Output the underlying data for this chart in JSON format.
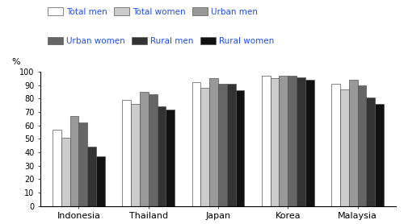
{
  "countries": [
    "Indonesia",
    "Thailand",
    "Japan",
    "Korea",
    "Malaysia"
  ],
  "series": {
    "Total men": [
      57,
      79,
      92,
      97,
      91
    ],
    "Total women": [
      51,
      76,
      88,
      95,
      87
    ],
    "Urban men": [
      67,
      85,
      95,
      97,
      94
    ],
    "Urban women": [
      62,
      83,
      91,
      97,
      90
    ],
    "Rural men": [
      44,
      74,
      91,
      96,
      81
    ],
    "Rural women": [
      37,
      72,
      86,
      94,
      76
    ]
  },
  "colors": {
    "Total men": "#ffffff",
    "Total women": "#cccccc",
    "Urban men": "#999999",
    "Urban women": "#666666",
    "Rural men": "#333333",
    "Rural women": "#111111"
  },
  "series_order": [
    "Total men",
    "Total women",
    "Urban men",
    "Urban women",
    "Rural men",
    "Rural women"
  ],
  "ylabel": "%",
  "ylim": [
    0,
    100
  ],
  "yticks": [
    0,
    10,
    20,
    30,
    40,
    50,
    60,
    70,
    80,
    90,
    100
  ],
  "bar_edge_color": "#555555",
  "background_color": "#ffffff",
  "legend_text_color": "#1f4de8",
  "legend_row1": [
    "Total men",
    "Total women",
    "Urban men"
  ],
  "legend_row2": [
    "Urban women",
    "Rural men",
    "Rural women"
  ],
  "group_width": 0.75
}
